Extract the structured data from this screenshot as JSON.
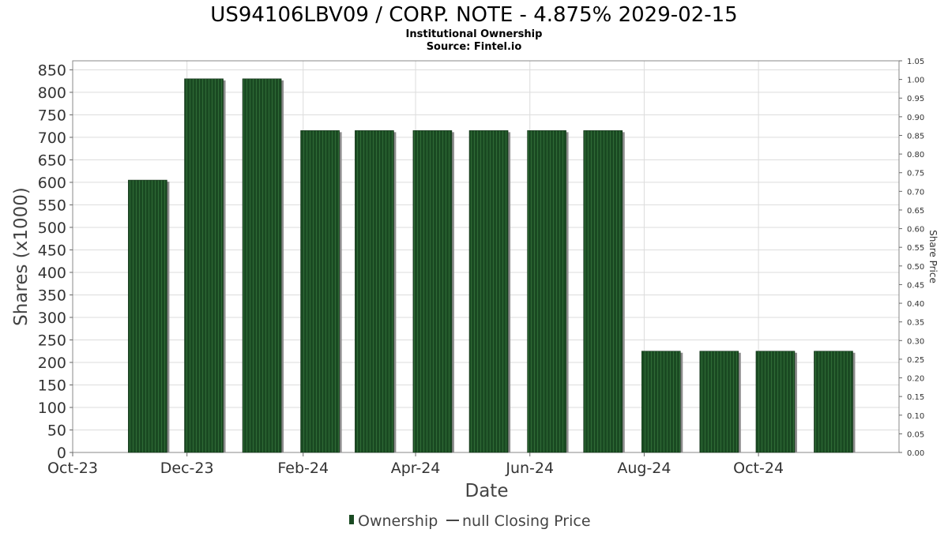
{
  "chart_data": {
    "type": "bar",
    "title": "US94106LBV09 / CORP. NOTE - 4.875% 2029-02-15",
    "subtitle": "Institutional Ownership",
    "source": "Source: Fintel.io",
    "xlabel": "Date",
    "ylabel": "Shares (x1000)",
    "y2label": "Share Price",
    "ylim": [
      0,
      870
    ],
    "yticks": [
      0,
      50,
      100,
      150,
      200,
      250,
      300,
      350,
      400,
      450,
      500,
      550,
      600,
      650,
      700,
      750,
      800,
      850
    ],
    "y2lim": [
      0.0,
      1.05
    ],
    "y2ticks": [
      "0.00",
      "0.05",
      "0.10",
      "0.15",
      "0.20",
      "0.25",
      "0.30",
      "0.35",
      "0.40",
      "0.45",
      "0.50",
      "0.55",
      "0.60",
      "0.65",
      "0.70",
      "0.75",
      "0.80",
      "0.85",
      "0.90",
      "0.95",
      "1.00",
      "1.05"
    ],
    "xrange": [
      "2023-10-01",
      "2024-12-15"
    ],
    "xticks": [
      {
        "date": "2023-10-01",
        "label": "Oct-23"
      },
      {
        "date": "2023-12-01",
        "label": "Dec-23"
      },
      {
        "date": "2024-02-01",
        "label": "Feb-24"
      },
      {
        "date": "2024-04-01",
        "label": "Apr-24"
      },
      {
        "date": "2024-06-01",
        "label": "Jun-24"
      },
      {
        "date": "2024-08-01",
        "label": "Aug-24"
      },
      {
        "date": "2024-10-01",
        "label": "Oct-24"
      }
    ],
    "grid": true,
    "series": [
      {
        "name": "Ownership",
        "color": "#1a4a22",
        "points": [
          {
            "date": "2023-11-10",
            "value": 605
          },
          {
            "date": "2023-12-10",
            "value": 830
          },
          {
            "date": "2024-01-10",
            "value": 830
          },
          {
            "date": "2024-02-10",
            "value": 715
          },
          {
            "date": "2024-03-10",
            "value": 715
          },
          {
            "date": "2024-04-10",
            "value": 715
          },
          {
            "date": "2024-05-10",
            "value": 715
          },
          {
            "date": "2024-06-10",
            "value": 715
          },
          {
            "date": "2024-07-10",
            "value": 715
          },
          {
            "date": "2024-08-10",
            "value": 225
          },
          {
            "date": "2024-09-10",
            "value": 225
          },
          {
            "date": "2024-10-10",
            "value": 225
          },
          {
            "date": "2024-11-10",
            "value": 225
          }
        ]
      },
      {
        "name": "null Closing Price",
        "color": "#444444",
        "points": []
      }
    ],
    "legend": [
      {
        "label": "Ownership",
        "type": "bar",
        "color": "#1a4a22"
      },
      {
        "label": "null Closing Price",
        "type": "line",
        "color": "#444444"
      }
    ],
    "legend_position": "bottom-center"
  }
}
